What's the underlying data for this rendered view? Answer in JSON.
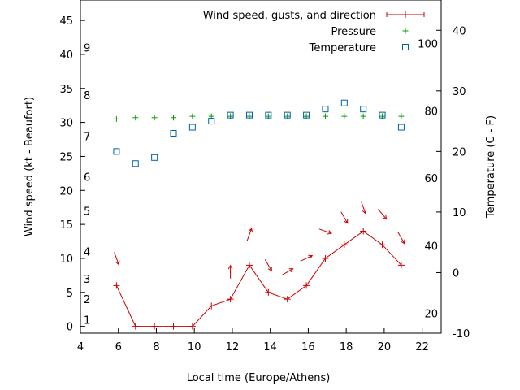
{
  "chart_data": {
    "type": "line",
    "title": "",
    "xlabel": "Local time (Europe/Athens)",
    "ylabel": "Wind speed (kt - Beaufort)",
    "y2label": "Temperature (C - F)",
    "xlim": [
      4,
      23
    ],
    "ylim": [
      -1,
      48
    ],
    "y2lim": [
      -10,
      45
    ],
    "x_ticks": [
      4,
      6,
      8,
      10,
      12,
      14,
      16,
      18,
      20,
      22
    ],
    "y_ticks": [
      0,
      5,
      10,
      15,
      20,
      25,
      30,
      35,
      40,
      45
    ],
    "y2_ticks": [
      -10,
      0,
      10,
      20,
      30,
      40
    ],
    "beaufort_labels": [
      {
        "text": "1",
        "kt": 1
      },
      {
        "text": "2",
        "kt": 4
      },
      {
        "text": "3",
        "kt": 7
      },
      {
        "text": "4",
        "kt": 11
      },
      {
        "text": "5",
        "kt": 17
      },
      {
        "text": "6",
        "kt": 22
      },
      {
        "text": "7",
        "kt": 28
      },
      {
        "text": "8",
        "kt": 34
      },
      {
        "text": "9",
        "kt": 41
      }
    ],
    "fahrenheit_labels": [
      {
        "text": "20",
        "celsius": -6.7
      },
      {
        "text": "40",
        "celsius": 4.4
      },
      {
        "text": "60",
        "celsius": 15.6
      },
      {
        "text": "80",
        "celsius": 26.7
      },
      {
        "text": "100",
        "celsius": 37.8
      }
    ],
    "legend_position": "top-right",
    "series": [
      {
        "name": "Wind speed, gusts, and direction",
        "color": "#cc0000",
        "axis": "left",
        "style": "line-points",
        "x": [
          5.9,
          6.9,
          7.9,
          8.9,
          9.9,
          10.9,
          11.9,
          12.9,
          13.9,
          14.9,
          15.9,
          16.9,
          17.9,
          18.9,
          19.9,
          20.9
        ],
        "y": [
          6,
          0,
          0,
          0,
          0,
          3,
          4,
          9,
          5,
          4,
          6,
          10,
          12,
          14,
          12,
          9
        ],
        "direction_arrows": [
          {
            "x": 5.9,
            "kt": 10,
            "from_deg": 340
          },
          {
            "x": 11.9,
            "kt": 8,
            "from_deg": 180
          },
          {
            "x": 12.9,
            "kt": 13.5,
            "from_deg": 200
          },
          {
            "x": 13.9,
            "kt": 9,
            "from_deg": 330
          },
          {
            "x": 14.9,
            "kt": 8,
            "from_deg": 240
          },
          {
            "x": 15.9,
            "kt": 10,
            "from_deg": 245
          },
          {
            "x": 16.9,
            "kt": 14,
            "from_deg": 290
          },
          {
            "x": 17.9,
            "kt": 16,
            "from_deg": 330
          },
          {
            "x": 18.9,
            "kt": 17.5,
            "from_deg": 340
          },
          {
            "x": 19.9,
            "kt": 16.5,
            "from_deg": 320
          },
          {
            "x": 20.9,
            "kt": 13,
            "from_deg": 330
          }
        ]
      },
      {
        "name": "Pressure",
        "color": "#00a000",
        "axis": "left",
        "style": "plus",
        "x": [
          5.9,
          6.9,
          7.9,
          8.9,
          9.9,
          10.9,
          11.9,
          12.9,
          13.9,
          14.9,
          15.9,
          16.9,
          17.9,
          18.9,
          19.9,
          20.9
        ],
        "y": [
          30.5,
          30.7,
          30.7,
          30.7,
          30.9,
          30.9,
          30.9,
          30.9,
          30.9,
          30.9,
          30.9,
          30.9,
          30.9,
          30.9,
          30.9,
          30.9
        ]
      },
      {
        "name": "Temperature",
        "color": "#0060ad",
        "axis": "right",
        "style": "open-square",
        "x": [
          5.9,
          6.9,
          7.9,
          8.9,
          9.9,
          10.9,
          11.9,
          12.9,
          13.9,
          14.9,
          15.9,
          16.9,
          17.9,
          18.9,
          19.9,
          20.9
        ],
        "y": [
          20,
          18,
          19,
          23,
          24,
          25,
          26,
          26,
          26,
          26,
          26,
          27,
          28,
          27,
          26,
          24
        ]
      }
    ]
  }
}
